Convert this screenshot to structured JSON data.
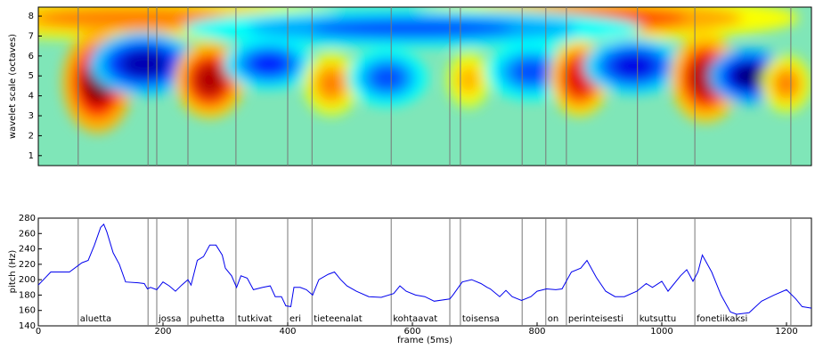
{
  "chart_data": [
    {
      "type": "scalogram",
      "ylabel": "wavelet scale (octaves)",
      "xlim": [
        0,
        1240
      ],
      "ylim": [
        0.5,
        8.45
      ],
      "yticks": [
        1,
        2,
        3,
        4,
        5,
        6,
        7,
        8
      ],
      "blobs": [
        {
          "x": 150,
          "y": 7.9,
          "z": 0.5,
          "rx": 220,
          "ry": 0.7
        },
        {
          "x": 900,
          "y": 7.9,
          "z": 0.6,
          "rx": 200,
          "ry": 0.7
        },
        {
          "x": 600,
          "y": 7.4,
          "z": -0.6,
          "rx": 230,
          "ry": 0.6
        },
        {
          "x": 95,
          "y": 4.7,
          "z": 1.0,
          "rx": 35,
          "ry": 1.6
        },
        {
          "x": 170,
          "y": 5.6,
          "z": -0.9,
          "rx": 55,
          "ry": 1.0
        },
        {
          "x": 275,
          "y": 4.8,
          "z": 0.9,
          "rx": 35,
          "ry": 1.2
        },
        {
          "x": 370,
          "y": 5.6,
          "z": -0.7,
          "rx": 45,
          "ry": 0.8
        },
        {
          "x": 470,
          "y": 4.6,
          "z": 0.5,
          "rx": 28,
          "ry": 1.0
        },
        {
          "x": 560,
          "y": 4.9,
          "z": -0.6,
          "rx": 40,
          "ry": 0.9
        },
        {
          "x": 690,
          "y": 4.8,
          "z": 0.4,
          "rx": 22,
          "ry": 0.9
        },
        {
          "x": 790,
          "y": 5.2,
          "z": -0.6,
          "rx": 45,
          "ry": 0.9
        },
        {
          "x": 868,
          "y": 4.9,
          "z": 0.8,
          "rx": 30,
          "ry": 1.2
        },
        {
          "x": 955,
          "y": 5.5,
          "z": -0.8,
          "rx": 50,
          "ry": 0.9
        },
        {
          "x": 1070,
          "y": 4.9,
          "z": 0.9,
          "rx": 35,
          "ry": 1.4
        },
        {
          "x": 1140,
          "y": 5.0,
          "z": -1.0,
          "rx": 40,
          "ry": 0.9
        },
        {
          "x": 1200,
          "y": 4.6,
          "z": 0.5,
          "rx": 25,
          "ry": 0.9
        }
      ]
    },
    {
      "type": "line",
      "ylabel": "pitch (Hz)",
      "xlabel": "frame (5ms)",
      "color": "#0000ee",
      "xlim": [
        0,
        1240
      ],
      "ylim": [
        140,
        280
      ],
      "xticks": [
        0,
        200,
        400,
        600,
        800,
        1000,
        1200
      ],
      "yticks": [
        140,
        160,
        180,
        200,
        220,
        240,
        260,
        280
      ],
      "boundaries": [
        64,
        176,
        190,
        240,
        317,
        400,
        439,
        566,
        660,
        677,
        776,
        814,
        847,
        961,
        1053,
        1207
      ],
      "words": [
        {
          "label": "aluetta",
          "x": 64
        },
        {
          "label": "jossa",
          "x": 190
        },
        {
          "label": "puhetta",
          "x": 240
        },
        {
          "label": "tutkivat",
          "x": 317
        },
        {
          "label": "eri",
          "x": 400
        },
        {
          "label": "tieteenalat",
          "x": 439
        },
        {
          "label": "kohtaavat",
          "x": 566
        },
        {
          "label": "toisensa",
          "x": 677
        },
        {
          "label": "on",
          "x": 814
        },
        {
          "label": "perinteisesti",
          "x": 847
        },
        {
          "label": "kutsuttu",
          "x": 961
        },
        {
          "label": "fonetiikaksi",
          "x": 1053
        }
      ],
      "x": [
        0,
        20,
        50,
        70,
        80,
        90,
        100,
        105,
        110,
        120,
        130,
        140,
        160,
        170,
        175,
        180,
        190,
        200,
        210,
        220,
        230,
        240,
        245,
        255,
        265,
        275,
        285,
        295,
        300,
        310,
        318,
        325,
        335,
        345,
        360,
        372,
        380,
        390,
        397,
        405,
        410,
        420,
        430,
        440,
        450,
        465,
        475,
        485,
        495,
        510,
        530,
        550,
        570,
        580,
        590,
        605,
        620,
        635,
        660,
        665,
        680,
        695,
        710,
        720,
        725,
        740,
        750,
        760,
        775,
        790,
        800,
        815,
        830,
        840,
        855,
        870,
        880,
        895,
        910,
        925,
        940,
        960,
        975,
        985,
        1000,
        1010,
        1030,
        1040,
        1050,
        1058,
        1065,
        1080,
        1095,
        1110,
        1120,
        1140,
        1160,
        1180,
        1200,
        1215,
        1225,
        1240
      ],
      "values": [
        193,
        210,
        210,
        222,
        225,
        245,
        268,
        272,
        262,
        235,
        220,
        197,
        196,
        195,
        188,
        190,
        187,
        197,
        192,
        185,
        193,
        200,
        193,
        225,
        230,
        245,
        245,
        232,
        215,
        205,
        190,
        205,
        202,
        187,
        190,
        192,
        178,
        178,
        166,
        165,
        190,
        190,
        187,
        180,
        200,
        207,
        210,
        200,
        192,
        185,
        178,
        177,
        182,
        192,
        185,
        180,
        178,
        172,
        175,
        180,
        197,
        200,
        195,
        190,
        188,
        178,
        186,
        178,
        173,
        178,
        185,
        188,
        187,
        188,
        210,
        215,
        225,
        203,
        185,
        178,
        178,
        185,
        195,
        190,
        198,
        185,
        205,
        213,
        198,
        210,
        232,
        210,
        180,
        158,
        155,
        157,
        172,
        180,
        187,
        175,
        165,
        163
      ]
    }
  ]
}
